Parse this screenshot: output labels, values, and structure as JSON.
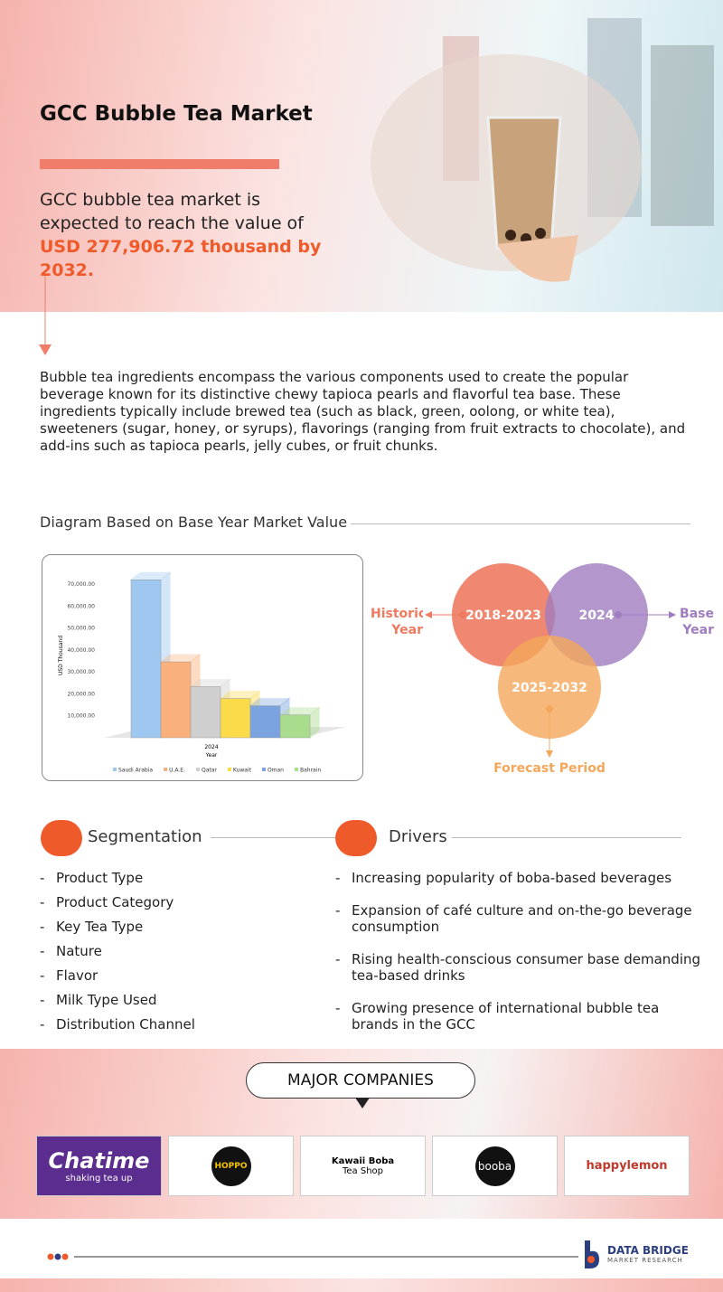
{
  "header": {
    "title": "GCC Bubble Tea Market",
    "lead": "GCC bubble tea market is expected to reach the value of",
    "highlight": "USD 277,906.72 thousand by 2032."
  },
  "intro": "Bubble tea ingredients encompass the various components used to create the popular beverage known for its distinctive chewy tapioca pearls and flavorful tea base. These ingredients typically include brewed tea (such as black, green, oolong, or white tea), sweeteners (sugar, honey, or syrups), flavorings (ranging from fruit extracts to chocolate), and add-ins such as tapioca pearls, jelly cubes, or fruit chunks.",
  "diagram_title": "Diagram Based on Base Year Market Value",
  "chart_data": {
    "type": "bar3d",
    "categories": [
      "2024"
    ],
    "x_label": "Year",
    "y_label": "USD Thousand",
    "series": [
      {
        "name": "Saudi Arabia",
        "color": "#9ec8ef",
        "values": [
          72000
        ]
      },
      {
        "name": "U.A.E.",
        "color": "#f9b07a",
        "values": [
          34600
        ]
      },
      {
        "name": "Qatar",
        "color": "#cfcfcf",
        "values": [
          23300
        ]
      },
      {
        "name": "Kuwait",
        "color": "#fbdb4a",
        "values": [
          17900
        ]
      },
      {
        "name": "Oman",
        "color": "#7aa3e0",
        "values": [
          14600
        ]
      },
      {
        "name": "Bahrain",
        "color": "#a9dc8c",
        "values": [
          10400
        ]
      }
    ],
    "ylim": [
      0,
      75000
    ],
    "yticks": [
      {
        "value": 10000,
        "label": "10,000.00"
      },
      {
        "value": 20000,
        "label": "20,000.00"
      },
      {
        "value": 30000,
        "label": "30,000.00"
      },
      {
        "value": 40000,
        "label": "40,000.00"
      },
      {
        "value": 50000,
        "label": "50,000.00"
      },
      {
        "value": 60000,
        "label": "60,000.00"
      },
      {
        "value": 70000,
        "label": "70,000.00"
      }
    ],
    "legend": "bottom"
  },
  "timeline": {
    "historic": {
      "period": "2018-2023",
      "label": "Historic Year"
    },
    "base": {
      "period": "2024",
      "label": "Base Year"
    },
    "forecast": {
      "period": "2025-2032",
      "label": "Forecast Period"
    }
  },
  "segmentation": {
    "title": "Segmentation",
    "items": [
      "Product Type",
      "Product Category",
      "Key Tea Type",
      "Nature",
      "Flavor",
      "Milk Type Used",
      "Distribution Channel"
    ]
  },
  "drivers": {
    "title": "Drivers",
    "items": [
      "Increasing popularity of boba-based beverages",
      "Expansion of café culture and on-the-go beverage consumption",
      "Rising health-conscious consumer base demanding tea-based drinks",
      "Growing presence of international bubble tea brands in the GCC"
    ]
  },
  "companies": {
    "title": "MAJOR COMPANIES",
    "logos": [
      {
        "name": "Chatime",
        "tagline": "shaking tea up"
      },
      {
        "name": "HOPPO"
      },
      {
        "name": "Kawaii Boba",
        "tagline": "Tea Shop"
      },
      {
        "name": "booba"
      },
      {
        "name": "happylemon"
      }
    ]
  },
  "footer": {
    "brand": "DATA BRIDGE",
    "sub": "MARKET RESEARCH"
  }
}
